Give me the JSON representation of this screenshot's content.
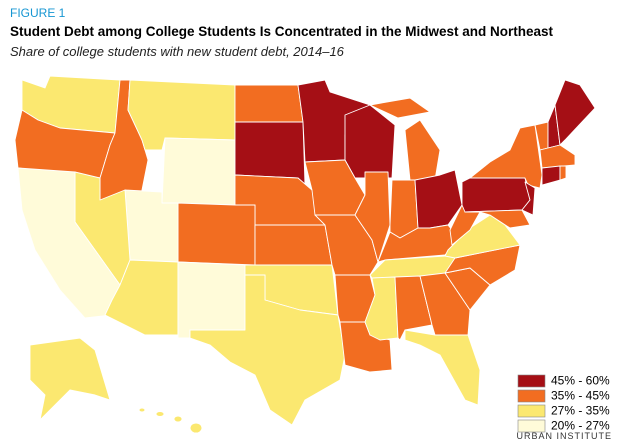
{
  "figure_label": "FIGURE 1",
  "title": "Student Debt among College Students Is Concentrated in the Midwest and Northeast",
  "subtitle": "Share of college students with new student debt, 2014–16",
  "legend": [
    {
      "label": "45% - 60%",
      "color": "#a50f15"
    },
    {
      "label": "35% - 45%",
      "color": "#f26d21"
    },
    {
      "label": "27% - 35%",
      "color": "#fbe870"
    },
    {
      "label": "20% - 27%",
      "color": "#fffbd9"
    }
  ],
  "source": "URBAN INSTITUTE"
}
